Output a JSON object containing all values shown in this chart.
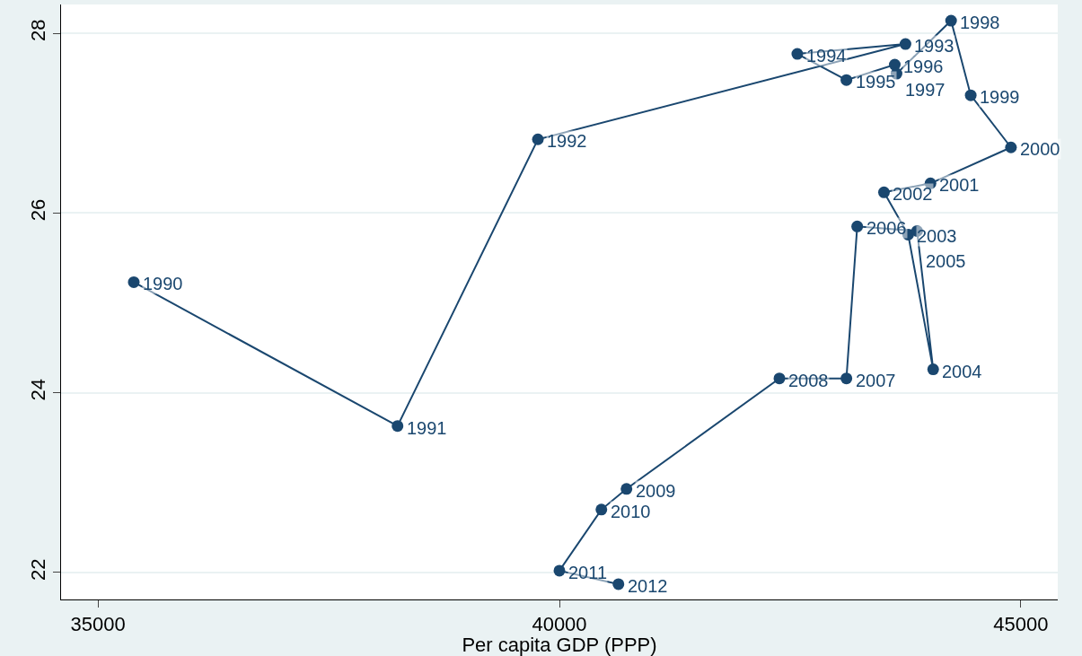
{
  "chart_data": {
    "type": "line",
    "xlabel": "Per capita GDP (PPP)",
    "x": [
      35388,
      38246,
      39767,
      43750,
      42578,
      43110,
      43634,
      43653,
      44244,
      44457,
      44893,
      44021,
      43517,
      43779,
      44050,
      43876,
      43227,
      43110,
      42384,
      40727,
      40455,
      40000,
      40640
    ],
    "series": [
      {
        "color": "#1a476f",
        "values": [
          25.23,
          23.63,
          26.82,
          27.88,
          27.77,
          27.48,
          27.65,
          27.55,
          28.14,
          27.31,
          26.73,
          26.33,
          26.23,
          25.76,
          24.26,
          25.8,
          25.85,
          24.16,
          24.16,
          22.93,
          22.7,
          22.02,
          21.87
        ]
      }
    ],
    "annotations": [
      {
        "text": "1990",
        "x": 35388,
        "y": 25.23
      },
      {
        "text": "1991",
        "x": 38246,
        "y": 23.63
      },
      {
        "text": "1992",
        "x": 39767,
        "y": 26.82
      },
      {
        "text": "1993",
        "x": 43750,
        "y": 27.88
      },
      {
        "text": "1994",
        "x": 42578,
        "y": 27.77
      },
      {
        "text": "1995",
        "x": 43110,
        "y": 27.48
      },
      {
        "text": "1996",
        "x": 43634,
        "y": 27.65
      },
      {
        "text": "1997",
        "x": 43653,
        "y": 27.55
      },
      {
        "text": "1998",
        "x": 44244,
        "y": 28.14
      },
      {
        "text": "1999",
        "x": 44457,
        "y": 27.31
      },
      {
        "text": "2000",
        "x": 44893,
        "y": 26.73
      },
      {
        "text": "2001",
        "x": 44021,
        "y": 26.33
      },
      {
        "text": "2002",
        "x": 43517,
        "y": 26.23
      },
      {
        "text": "2003",
        "x": 43779,
        "y": 25.76
      },
      {
        "text": "2004",
        "x": 44050,
        "y": 24.26
      },
      {
        "text": "2005",
        "x": 43876,
        "y": 25.8
      },
      {
        "text": "2006",
        "x": 43227,
        "y": 25.85
      },
      {
        "text": "2007",
        "x": 43110,
        "y": 24.16
      },
      {
        "text": "2008",
        "x": 42384,
        "y": 24.16
      },
      {
        "text": "2009",
        "x": 40727,
        "y": 22.93
      },
      {
        "text": "2010",
        "x": 40455,
        "y": 22.7
      },
      {
        "text": "2011",
        "x": 40000,
        "y": 22.02
      },
      {
        "text": "2012",
        "x": 40640,
        "y": 21.87
      }
    ],
    "xlim": [
      34600,
      45400
    ],
    "xticks": [
      35000,
      40000,
      45000
    ],
    "ylim": [
      21.7,
      28.32
    ],
    "yticks": [
      22,
      24,
      26,
      28
    ],
    "grid": "y",
    "marker": "circle",
    "line_style": "solid",
    "legend": false
  }
}
